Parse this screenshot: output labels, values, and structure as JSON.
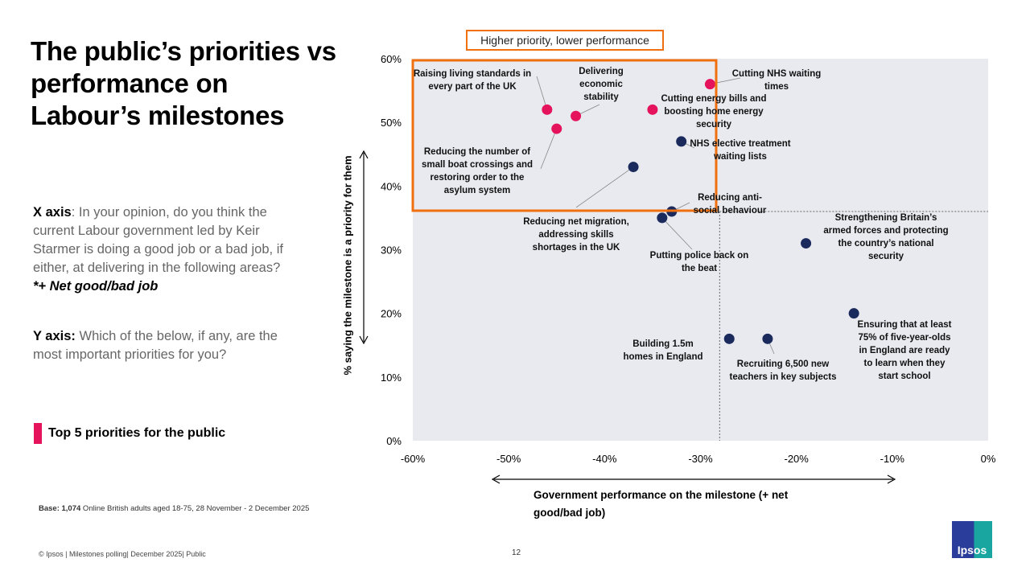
{
  "slide": {
    "title": "The public’s priorities vs performance on Labour’s milestones",
    "x_axis_heading": "X axis",
    "x_axis_text": ": In your opinion, do you think the current Labour government led by Keir Starmer is doing a good job or a bad job, if either, at delivering in the following areas?",
    "x_axis_note": "*+ Net good/bad job",
    "y_axis_heading": "Y axis:",
    "y_axis_text": " Which of the below, if any, are the most important priorities for you?",
    "legend_label": "Top 5 priorities for the public",
    "base_bold": "Base: 1,074",
    "base_text": " Online British adults aged 18-75, 28 November  - 2 December 2025",
    "footer": "© Ipsos | Milestones polling| December 2025| Public",
    "page_number": "12",
    "logo": "Ipsos"
  },
  "chart_data": {
    "type": "scatter",
    "xlabel": "Government performance on the milestone (+ net good/bad job)",
    "ylabel": "% saying the milestone is a priority for them",
    "xlim": [
      -60,
      0
    ],
    "ylim": [
      0,
      60
    ],
    "x_ticks": [
      "-60%",
      "-50%",
      "-40%",
      "-30%",
      "-20%",
      "-10%",
      "0%"
    ],
    "y_ticks": [
      "0%",
      "10%",
      "20%",
      "30%",
      "40%",
      "50%",
      "60%"
    ],
    "highlight_box_label": "Higher priority, lower performance",
    "reference_lines": {
      "x": -28,
      "y": 36
    },
    "colors": {
      "top5": "#e5135c",
      "other": "#1b2a5c",
      "highlight": "#f07010",
      "plot_bg": "#e8eaef"
    },
    "points": [
      {
        "label": "Raising living standards in every part of the UK",
        "x": -46,
        "y": 52,
        "top5": true
      },
      {
        "label": "Delivering economic stability",
        "x": -43,
        "y": 51,
        "top5": true
      },
      {
        "label": "Cutting NHS waiting times",
        "x": -29,
        "y": 56,
        "top5": true
      },
      {
        "label": "Cutting energy bills and boosting home energy security",
        "x": -35,
        "y": 52,
        "top5": true
      },
      {
        "label": "Reducing the number of small boat crossings and restoring order to the asylum system",
        "x": -45,
        "y": 49,
        "top5": true
      },
      {
        "label": "NHS elective treatment waiting lists",
        "x": -32,
        "y": 47,
        "top5": false
      },
      {
        "label": "Reducing net migration, addressing skills shortages in the UK",
        "x": -37,
        "y": 43,
        "top5": false
      },
      {
        "label": "Reducing anti-social behaviour",
        "x": -33,
        "y": 36,
        "top5": false
      },
      {
        "label": "Putting police back on the beat",
        "x": -34,
        "y": 35,
        "top5": false
      },
      {
        "label": "Strengthening Britain’s armed forces and protecting the country’s national security",
        "x": -19,
        "y": 31,
        "top5": false
      },
      {
        "label": "Ensuring that at least 75% of five-year-olds in England are ready to learn when they start school",
        "x": -14,
        "y": 20,
        "top5": false
      },
      {
        "label": "Building 1.5m homes in England",
        "x": -27,
        "y": 16,
        "top5": false
      },
      {
        "label": "Recruiting 6,500 new teachers in key subjects",
        "x": -23,
        "y": 16,
        "top5": false
      }
    ]
  }
}
